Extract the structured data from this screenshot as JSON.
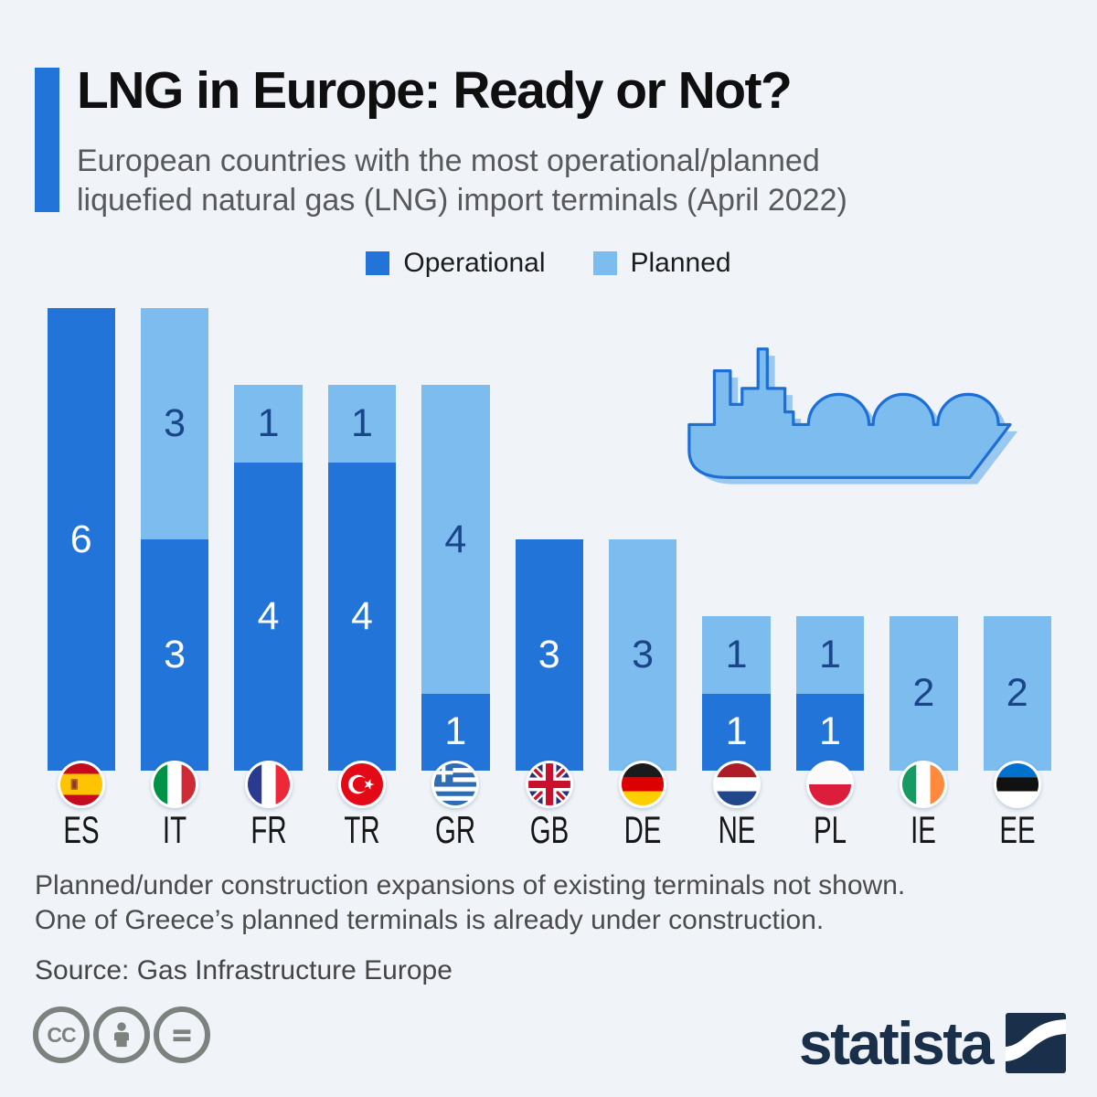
{
  "header": {
    "title": "LNG in Europe: Ready or Not?",
    "subtitle_lines": [
      "European countries with the most operational/planned",
      "liquefied natural gas (LNG) import terminals (April 2022)"
    ]
  },
  "colors": {
    "operational": "#2374D8",
    "planned": "#7CBCEE",
    "accent_bar": "#2374D8",
    "value_on_operational": "#FFFFFF",
    "value_on_planned": "#1A4689",
    "background": "#F0F4F9",
    "statista_navy": "#1A2F4A",
    "license_gray": "#7C827D"
  },
  "chart_data": {
    "type": "bar",
    "stacked": true,
    "title": "European countries with the most operational/planned LNG import terminals (April 2022)",
    "categories": [
      "ES",
      "IT",
      "FR",
      "TR",
      "GR",
      "GB",
      "DE",
      "NE",
      "PL",
      "IE",
      "EE"
    ],
    "category_flag_icons": [
      "flag-es-icon",
      "flag-it-icon",
      "flag-fr-icon",
      "flag-tr-icon",
      "flag-gr-icon",
      "flag-gb-icon",
      "flag-de-icon",
      "flag-ne-icon",
      "flag-pl-icon",
      "flag-ie-icon",
      "flag-ee-icon"
    ],
    "series": [
      {
        "name": "Operational",
        "color": "#2374D8",
        "values": [
          6,
          3,
          4,
          4,
          1,
          3,
          0,
          1,
          1,
          0,
          0
        ]
      },
      {
        "name": "Planned",
        "color": "#7CBCEE",
        "values": [
          0,
          3,
          1,
          1,
          4,
          0,
          3,
          1,
          1,
          2,
          2
        ]
      }
    ],
    "ylim": [
      0,
      6
    ],
    "grid": false,
    "legend_position": "top",
    "value_labels": true
  },
  "footnote": {
    "line1": "Planned/under construction expansions of existing terminals not shown.",
    "line2": "One of Greece’s planned terminals is already under construction.",
    "source": "Source: Gas Infrastructure Europe"
  },
  "branding": {
    "logo_text": "statista",
    "cc_text": "CC",
    "license_icons": [
      "cc-icon",
      "attribution-person-icon",
      "equals-icon"
    ]
  }
}
